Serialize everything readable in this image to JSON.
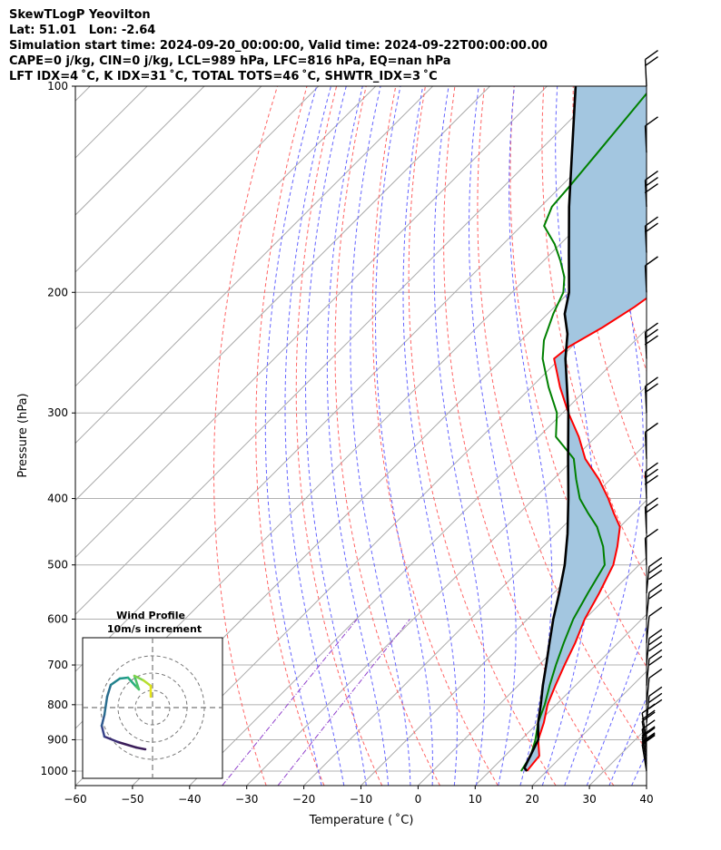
{
  "header": {
    "lines": [
      "SkewTLogP Yeovilton",
      "Lat: 51.01   Lon: -2.64",
      "Simulation start time: 2024-09-20_00:00:00, Valid time: 2024-09-22T00:00:00.00",
      "CAPE=0 j/kg, CIN=0 j/kg, LCL=989 hPa, LFC=816 hPa, EQ=nan hPa",
      "LFT IDX=4 ˚C, K IDX=31 ˚C, TOTAL TOTS=46 ˚C, SHWTR_IDX=3 ˚C"
    ]
  },
  "chart_data": {
    "type": "line",
    "subtype": "skew-T log-P diagram",
    "xlabel": "Temperature ( ˚C)",
    "ylabel": "Pressure (hPa)",
    "xlim": [
      -60,
      40
    ],
    "ylim": [
      1050,
      100
    ],
    "yscale": "log",
    "x_ticks": [
      -60,
      -50,
      -40,
      -30,
      -20,
      -10,
      0,
      10,
      20,
      30,
      40
    ],
    "y_ticks": [
      1000,
      900,
      800,
      700,
      600,
      500,
      400,
      300,
      200,
      100
    ],
    "grid": true,
    "series": [
      {
        "role": "temperature",
        "color": "#ff0000",
        "points": [
          [
            16.5,
            1000
          ],
          [
            16.0,
            950
          ],
          [
            13.0,
            900
          ],
          [
            11.0,
            850
          ],
          [
            8.5,
            800
          ],
          [
            6.5,
            750
          ],
          [
            4.5,
            700
          ],
          [
            2.5,
            650
          ],
          [
            0.0,
            600
          ],
          [
            -2.0,
            550
          ],
          [
            -4.5,
            500
          ],
          [
            -7.0,
            470
          ],
          [
            -10.0,
            440
          ],
          [
            -13.5,
            420
          ],
          [
            -17.0,
            400
          ],
          [
            -22.0,
            375
          ],
          [
            -28.0,
            350
          ],
          [
            -33.0,
            325
          ],
          [
            -39.0,
            300
          ],
          [
            -45.0,
            275
          ],
          [
            -51.0,
            250
          ],
          [
            -50.5,
            240
          ],
          [
            -48.0,
            225
          ],
          [
            -46.0,
            210
          ],
          [
            -45.0,
            200
          ],
          [
            -46.0,
            190
          ],
          [
            -48.0,
            180
          ],
          [
            -50.0,
            170
          ],
          [
            -52.5,
            160
          ],
          [
            -54.0,
            150
          ],
          [
            -56.0,
            140
          ],
          [
            -58.0,
            130
          ],
          [
            -60.0,
            120
          ],
          [
            -63.0,
            110
          ],
          [
            -66.0,
            100
          ]
        ]
      },
      {
        "role": "dewpoint",
        "color": "#008000",
        "points": [
          [
            15.5,
            1000
          ],
          [
            14.5,
            950
          ],
          [
            12.5,
            900
          ],
          [
            10.0,
            850
          ],
          [
            8.0,
            800
          ],
          [
            5.5,
            750
          ],
          [
            3.0,
            700
          ],
          [
            0.5,
            650
          ],
          [
            -2.0,
            600
          ],
          [
            -4.0,
            550
          ],
          [
            -6.0,
            500
          ],
          [
            -9.5,
            470
          ],
          [
            -14.0,
            440
          ],
          [
            -18.0,
            420
          ],
          [
            -22.0,
            400
          ],
          [
            -26.0,
            375
          ],
          [
            -30.0,
            350
          ],
          [
            -37.0,
            325
          ],
          [
            -41.0,
            300
          ],
          [
            -47.0,
            275
          ],
          [
            -53.0,
            250
          ],
          [
            -56.0,
            235
          ],
          [
            -59.0,
            215
          ],
          [
            -61.0,
            200
          ],
          [
            -63.5,
            190
          ],
          [
            -67.0,
            180
          ],
          [
            -71.0,
            170
          ],
          [
            -76.0,
            160
          ],
          [
            -78.0,
            150
          ],
          [
            -78.5,
            140
          ],
          [
            -79.5,
            125
          ],
          [
            -81.5,
            100
          ]
        ]
      },
      {
        "role": "parcel",
        "color": "#000000",
        "points": [
          [
            16.5,
            1000
          ],
          [
            15.5,
            989
          ],
          [
            13.0,
            900
          ],
          [
            10.0,
            850
          ],
          [
            7.3,
            800
          ],
          [
            4.3,
            750
          ],
          [
            1.3,
            700
          ],
          [
            -2.0,
            650
          ],
          [
            -5.5,
            600
          ],
          [
            -9.0,
            550
          ],
          [
            -13.0,
            500
          ],
          [
            -18.0,
            450
          ],
          [
            -24.0,
            400
          ],
          [
            -31.0,
            350
          ],
          [
            -39.0,
            300
          ],
          [
            -49.0,
            250
          ],
          [
            -53.0,
            230
          ],
          [
            -57.0,
            215
          ],
          [
            -60.0,
            200
          ],
          [
            -67.0,
            175
          ],
          [
            -75.0,
            150
          ],
          [
            -84.0,
            125
          ],
          [
            -95.0,
            100
          ]
        ]
      }
    ],
    "shading": {
      "between": "temperature and parcel",
      "color": "#a3c6e0"
    },
    "reference_lines": {
      "isotherms_color": "#aaaaaa",
      "dry_adiabats_color": "#ff6464",
      "moist_adiabats_color": "#6464ff",
      "mixing_ratio_color": "#9040cc"
    },
    "wind_barbs_column": [
      1000,
      975,
      950,
      925,
      900,
      850,
      800,
      750,
      700,
      650,
      600,
      550,
      500,
      450,
      400,
      350,
      300,
      250,
      200,
      175,
      150,
      125,
      100
    ],
    "inset": {
      "title": "Wind Profile",
      "subtitle": "10m/s increment",
      "type": "hodograph",
      "ring_speeds_ms": [
        10,
        20,
        30
      ]
    }
  }
}
